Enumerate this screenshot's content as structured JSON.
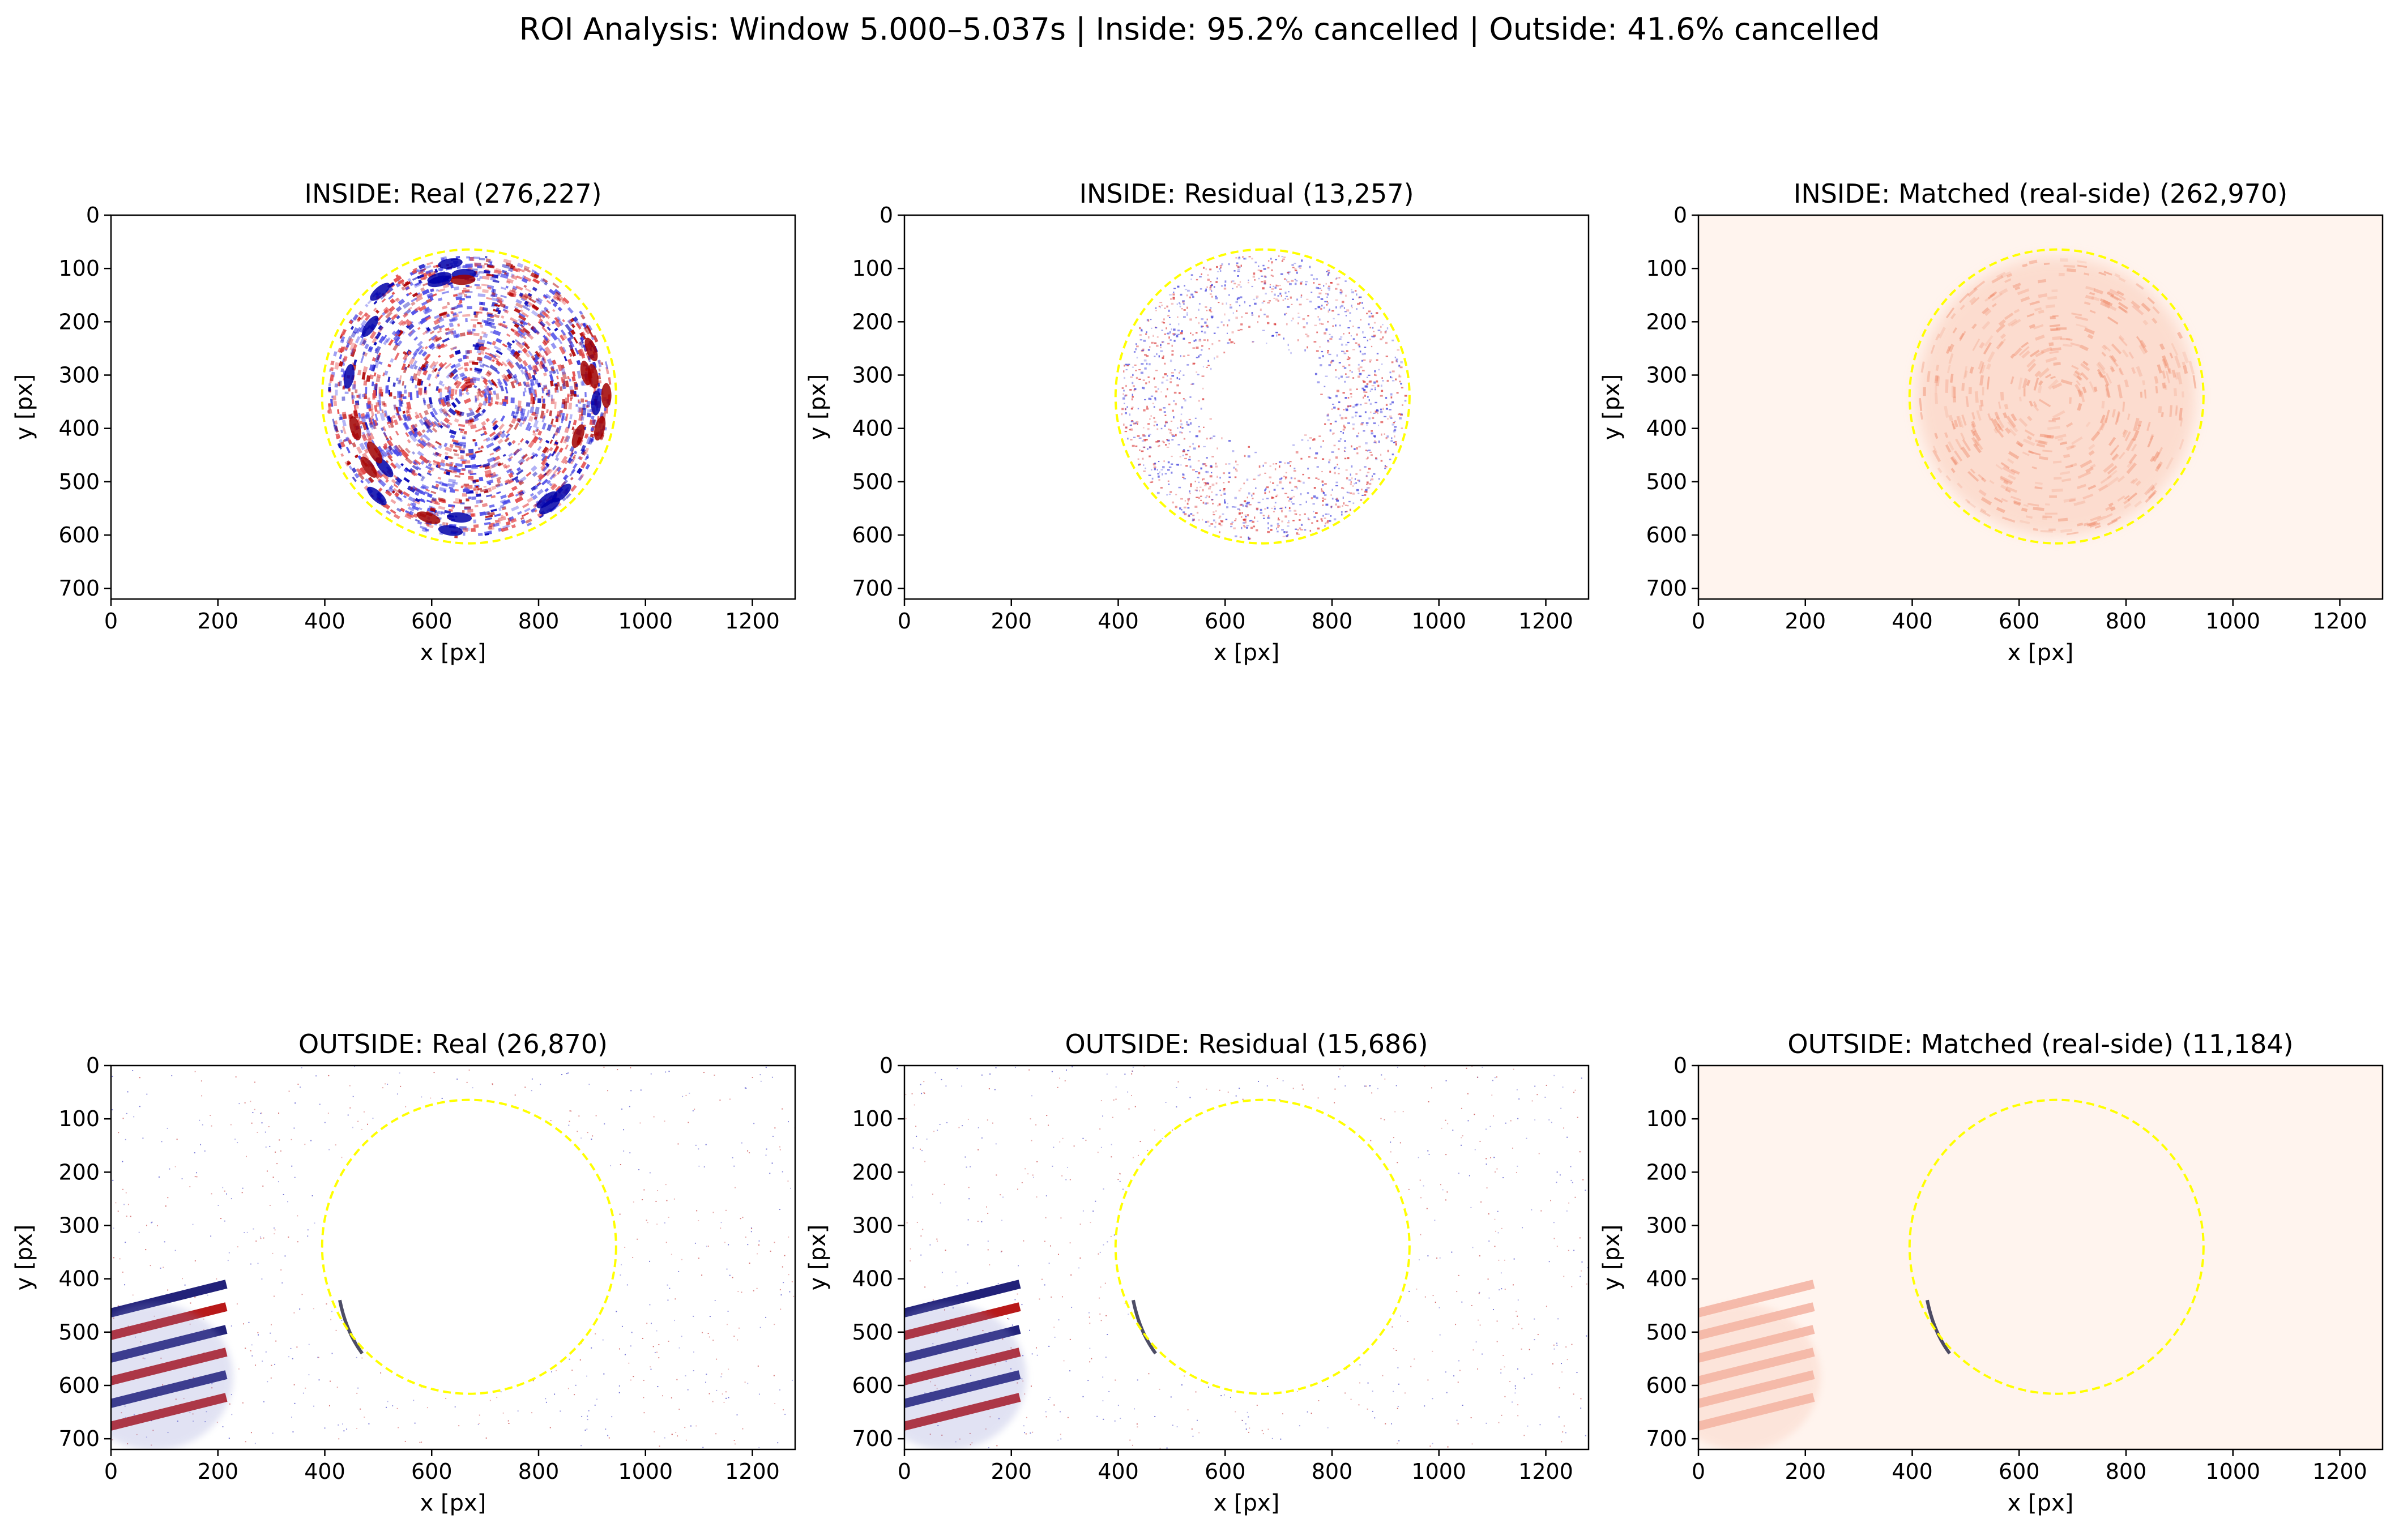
{
  "figure": {
    "suptitle": "ROI Analysis: Window 5.000–5.037s | Inside: 95.2% cancelled | Outside: 41.6% cancelled"
  },
  "chart_data": [
    {
      "type": "heatmap",
      "id": "inside-real",
      "title": "INSIDE: Real (276,227)",
      "xlabel": "x [px]",
      "ylabel": "y [px]",
      "xlim": [
        0,
        1280
      ],
      "ylim": [
        720,
        0
      ],
      "xticks": [
        "0",
        "200",
        "400",
        "600",
        "800",
        "1000",
        "1200"
      ],
      "yticks": [
        "0",
        "100",
        "200",
        "300",
        "400",
        "500",
        "600",
        "700"
      ],
      "colormap": "seismic",
      "circle": {
        "cx": 670,
        "cy": 340,
        "r": 275,
        "color": "#ffff00",
        "style": "dashed"
      }
    },
    {
      "type": "heatmap",
      "id": "inside-residual",
      "title": "INSIDE: Residual (13,257)",
      "xlabel": "x [px]",
      "ylabel": "y [px]",
      "xlim": [
        0,
        1280
      ],
      "ylim": [
        720,
        0
      ],
      "xticks": [
        "0",
        "200",
        "400",
        "600",
        "800",
        "1000",
        "1200"
      ],
      "yticks": [
        "0",
        "100",
        "200",
        "300",
        "400",
        "500",
        "600",
        "700"
      ],
      "colormap": "seismic",
      "circle": {
        "cx": 670,
        "cy": 340,
        "r": 275,
        "color": "#ffff00",
        "style": "dashed"
      }
    },
    {
      "type": "heatmap",
      "id": "inside-matched",
      "title": "INSIDE: Matched (real-side) (262,970)",
      "xlabel": "x [px]",
      "ylabel": "y [px]",
      "xlim": [
        0,
        1280
      ],
      "ylim": [
        720,
        0
      ],
      "xticks": [
        "0",
        "200",
        "400",
        "600",
        "800",
        "1000",
        "1200"
      ],
      "yticks": [
        "0",
        "100",
        "200",
        "300",
        "400",
        "500",
        "600",
        "700"
      ],
      "colormap": "Reds",
      "circle": {
        "cx": 670,
        "cy": 340,
        "r": 275,
        "color": "#ffff00",
        "style": "dashed"
      }
    },
    {
      "type": "heatmap",
      "id": "outside-real",
      "title": "OUTSIDE: Real (26,870)",
      "xlabel": "x [px]",
      "ylabel": "y [px]",
      "xlim": [
        0,
        1280
      ],
      "ylim": [
        720,
        0
      ],
      "xticks": [
        "0",
        "200",
        "400",
        "600",
        "800",
        "1000",
        "1200"
      ],
      "yticks": [
        "0",
        "100",
        "200",
        "300",
        "400",
        "500",
        "600",
        "700"
      ],
      "colormap": "seismic",
      "circle": {
        "cx": 670,
        "cy": 340,
        "r": 275,
        "color": "#ffff00",
        "style": "dashed"
      }
    },
    {
      "type": "heatmap",
      "id": "outside-residual",
      "title": "OUTSIDE: Residual (15,686)",
      "xlabel": "x [px]",
      "ylabel": "y [px]",
      "xlim": [
        0,
        1280
      ],
      "ylim": [
        720,
        0
      ],
      "xticks": [
        "0",
        "200",
        "400",
        "600",
        "800",
        "1000",
        "1200"
      ],
      "yticks": [
        "0",
        "100",
        "200",
        "300",
        "400",
        "500",
        "600",
        "700"
      ],
      "colormap": "seismic",
      "circle": {
        "cx": 670,
        "cy": 340,
        "r": 275,
        "color": "#ffff00",
        "style": "dashed"
      }
    },
    {
      "type": "heatmap",
      "id": "outside-matched",
      "title": "OUTSIDE: Matched (real-side) (11,184)",
      "xlabel": "x [px]",
      "ylabel": "y [px]",
      "xlim": [
        0,
        1280
      ],
      "ylim": [
        720,
        0
      ],
      "xticks": [
        "0",
        "200",
        "400",
        "600",
        "800",
        "1000",
        "1200"
      ],
      "yticks": [
        "0",
        "100",
        "200",
        "300",
        "400",
        "500",
        "600",
        "700"
      ],
      "colormap": "Reds",
      "circle": {
        "cx": 670,
        "cy": 340,
        "r": 275,
        "color": "#ffff00",
        "style": "dashed"
      }
    }
  ]
}
